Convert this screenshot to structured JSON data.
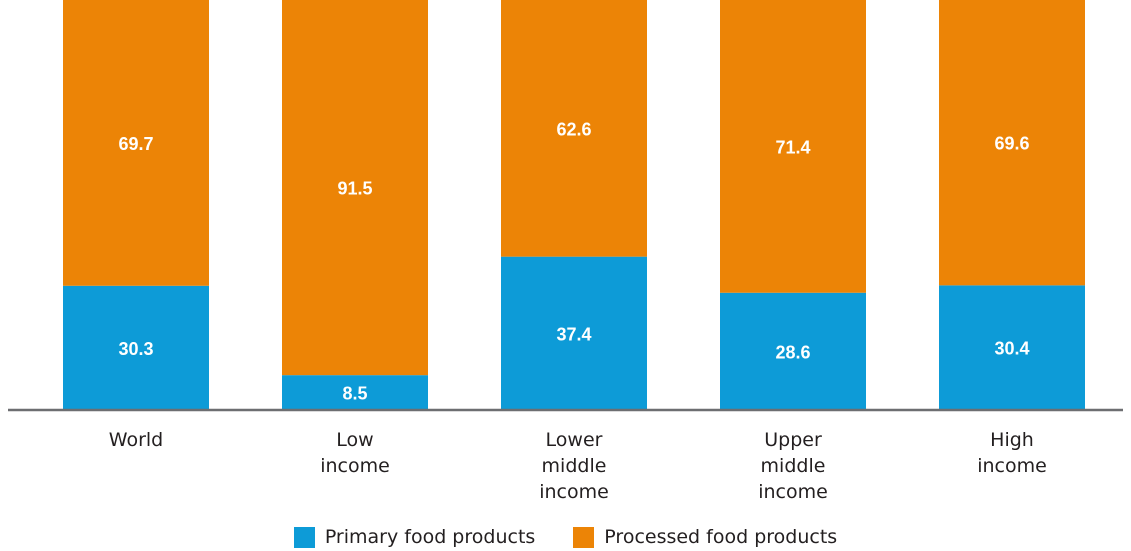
{
  "chart_data": {
    "type": "bar",
    "stacked": true,
    "categories": [
      "World",
      "Low income",
      "Lower middle income",
      "Upper middle income",
      "High income"
    ],
    "category_lines": [
      [
        "World"
      ],
      [
        "Low",
        "income"
      ],
      [
        "Lower",
        "middle",
        "income"
      ],
      [
        "Upper",
        "middle",
        "income"
      ],
      [
        "High",
        "income"
      ]
    ],
    "series": [
      {
        "name": "Primary food products",
        "color": "#0d9bd7",
        "values": [
          30.3,
          8.5,
          37.4,
          28.6,
          30.4
        ]
      },
      {
        "name": "Processed food products",
        "color": "#ec8406",
        "values": [
          69.7,
          91.5,
          62.6,
          71.4,
          69.6
        ]
      }
    ],
    "ylim": [
      0,
      100
    ],
    "grid": false,
    "legend": "bottom"
  }
}
